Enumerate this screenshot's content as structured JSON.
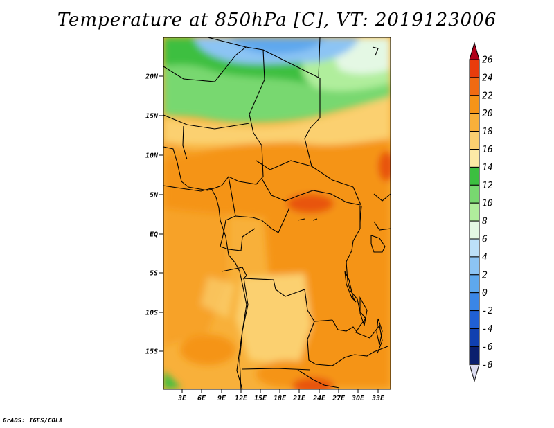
{
  "title": "Temperature at 850hPa [C], VT: 2019123006",
  "credit": "GrADS: IGES/COLA",
  "map": {
    "lat_labels": [
      "20N",
      "15N",
      "10N",
      "5N",
      "EQ",
      "5S",
      "10S",
      "15S"
    ],
    "lon_labels": [
      "3E",
      "6E",
      "9E",
      "12E",
      "15E",
      "18E",
      "21E",
      "24E",
      "27E",
      "30E",
      "33E"
    ]
  },
  "colorbar": {
    "levels": [
      "26",
      "24",
      "22",
      "20",
      "18",
      "16",
      "14",
      "12",
      "10",
      "8",
      "6",
      "4",
      "2",
      "0",
      "-2",
      "-4",
      "-6",
      "-8"
    ],
    "colors": [
      "#b0001a",
      "#e83c0c",
      "#f06a12",
      "#f59418",
      "#f8b03a",
      "#fbd070",
      "#fdeaa6",
      "#3cbf40",
      "#78d870",
      "#b0ee9c",
      "#e4f8e4",
      "#bce0f8",
      "#8cc4f4",
      "#5ea8ee",
      "#3a86e6",
      "#2060d4",
      "#1040b0",
      "#0a1f6e",
      "#dcdcf0"
    ]
  }
}
